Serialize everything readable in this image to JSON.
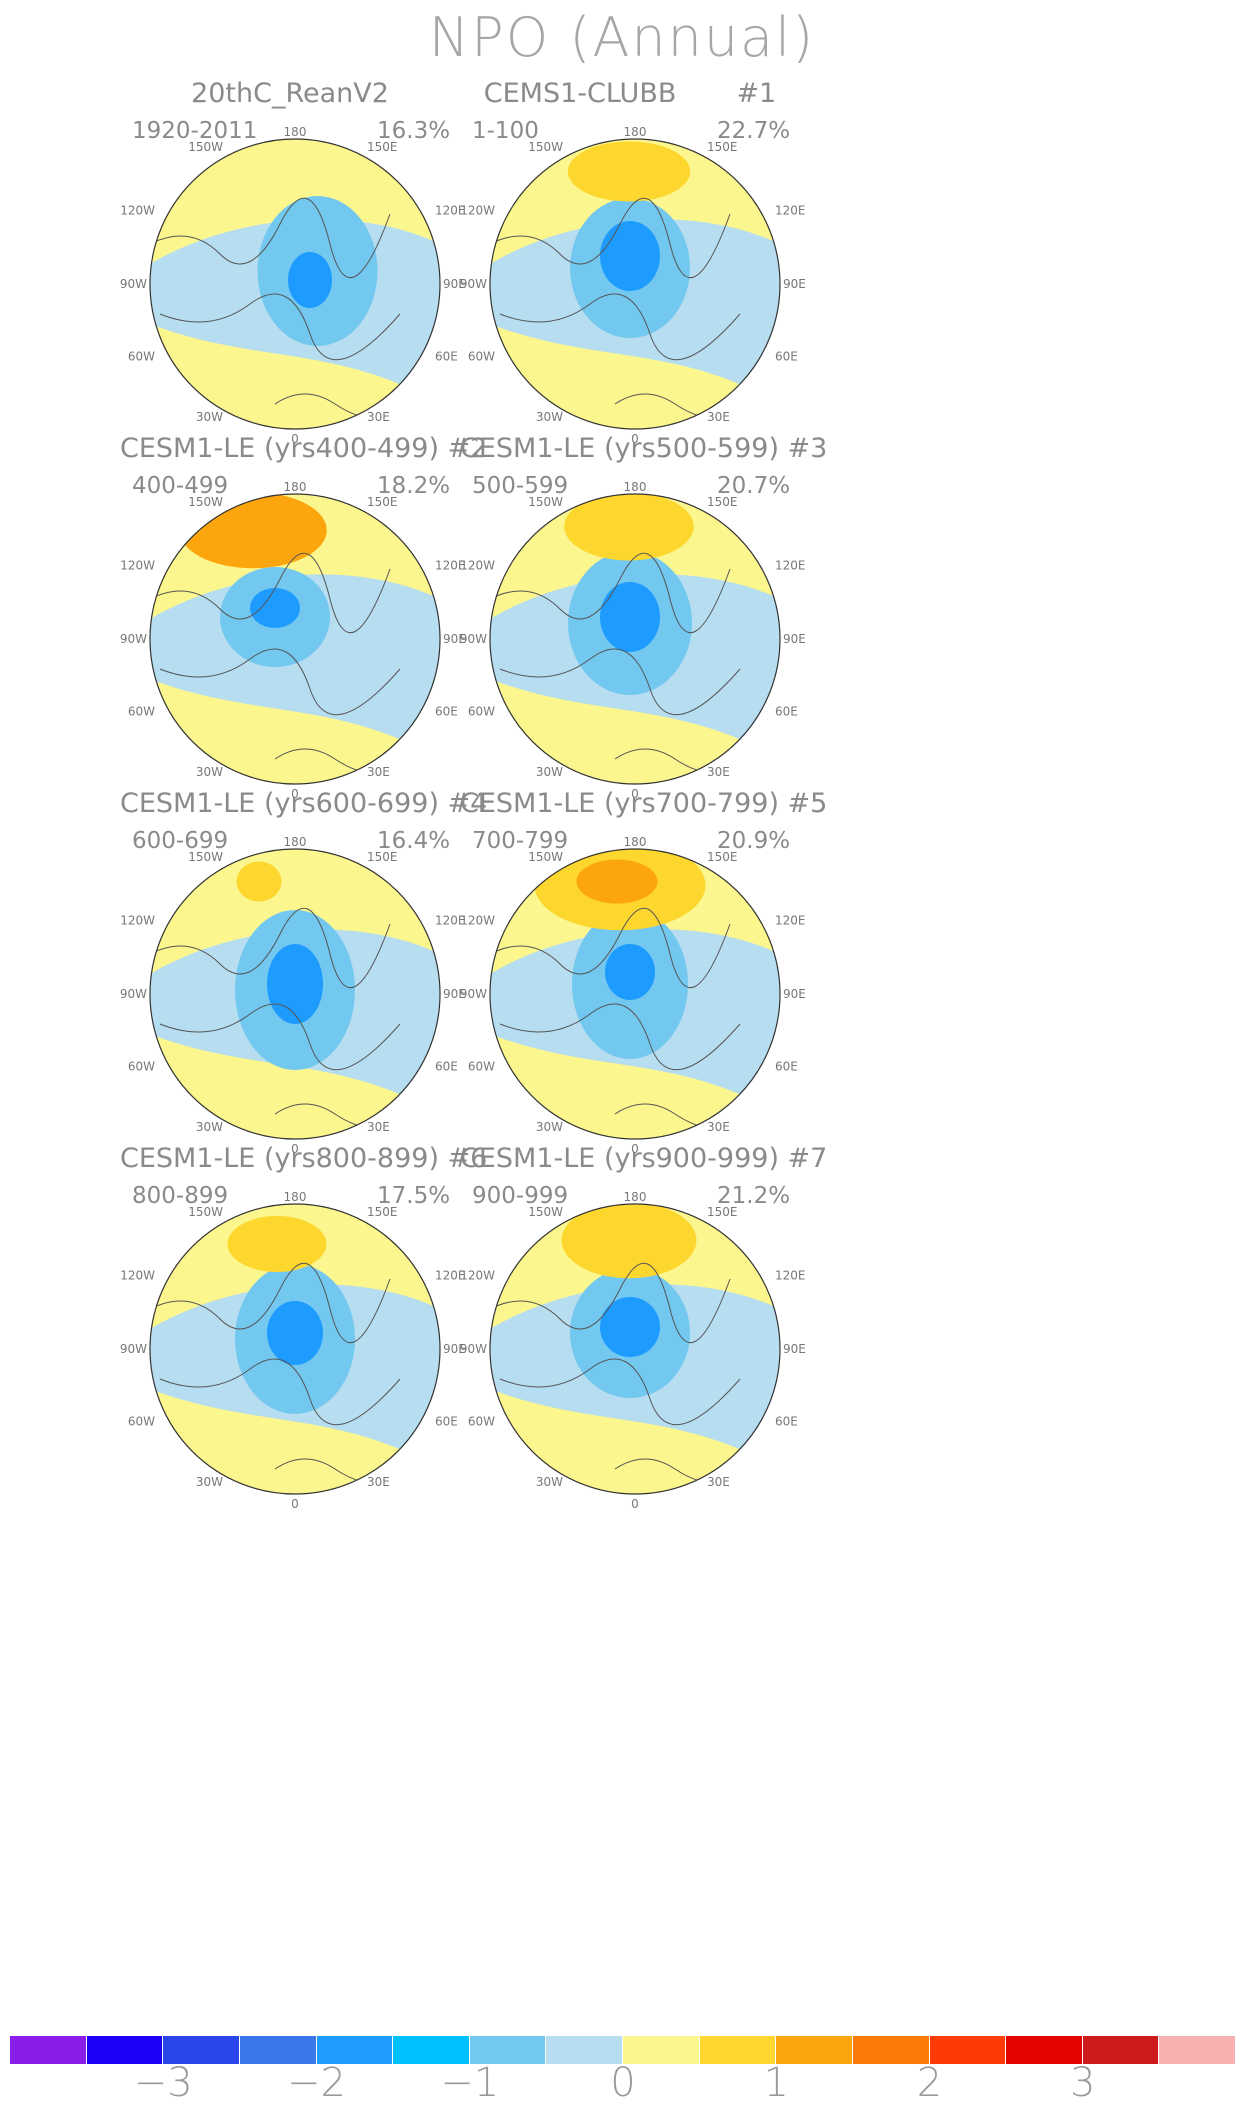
{
  "title": "NPO (Annual)",
  "lon_labels": {
    "t180": "180",
    "t150w": "150W",
    "t150e": "150E",
    "t120w": "120W",
    "t120e": "120E",
    "t90w": "90W",
    "t90e": "90E",
    "t60w": "60W",
    "t60e": "60E",
    "t30w": "30W",
    "t30e": "30E",
    "t0": "0"
  },
  "panels": [
    {
      "title": "20thC_ReanV2",
      "years": "1920-2011",
      "pct": "16.3%",
      "highs": [
        {
          "cx": 0,
          "cy": 0,
          "rx": 0,
          "ry": 0,
          "lvl": 0
        }
      ],
      "lows": [
        {
          "cx": 45,
          "cy": -55,
          "rx": 60,
          "ry": 75,
          "lvl": 1
        },
        {
          "cx": 30,
          "cy": -40,
          "rx": 22,
          "ry": 28,
          "lvl": 2
        }
      ]
    },
    {
      "title": "CEMS1-CLUBB       #1",
      "years": "1-100",
      "pct": "22.7%",
      "highs": [
        {
          "cx": -10,
          "cy": -150,
          "rx": 68,
          "ry": 30,
          "lvl": 1
        }
      ],
      "lows": [
        {
          "cx": -10,
          "cy": -60,
          "rx": 60,
          "ry": 70,
          "lvl": 1
        },
        {
          "cx": -10,
          "cy": -80,
          "rx": 30,
          "ry": 35,
          "lvl": 2
        }
      ]
    },
    {
      "title": "CESM1-LE (yrs400-499) #2",
      "years": "400-499",
      "pct": "18.2%",
      "highs": [
        {
          "cx": -70,
          "cy": -145,
          "rx": 82,
          "ry": 38,
          "lvl": 2
        }
      ],
      "lows": [
        {
          "cx": -40,
          "cy": -70,
          "rx": 55,
          "ry": 50,
          "lvl": 1
        },
        {
          "cx": -40,
          "cy": -85,
          "rx": 25,
          "ry": 20,
          "lvl": 2
        }
      ]
    },
    {
      "title": "CESM1-LE (yrs500-599) #3",
      "years": "500-599",
      "pct": "20.7%",
      "highs": [
        {
          "cx": -10,
          "cy": -150,
          "rx": 72,
          "ry": 34,
          "lvl": 1
        }
      ],
      "lows": [
        {
          "cx": -10,
          "cy": -60,
          "rx": 62,
          "ry": 72,
          "lvl": 1
        },
        {
          "cx": -10,
          "cy": -70,
          "rx": 30,
          "ry": 35,
          "lvl": 2
        }
      ]
    },
    {
      "title": "CESM1-LE (yrs600-699) #4",
      "years": "600-699",
      "pct": "16.4%",
      "highs": [
        {
          "cx": -60,
          "cy": -150,
          "rx": 25,
          "ry": 20,
          "lvl": 1
        }
      ],
      "lows": [
        {
          "cx": 0,
          "cy": -40,
          "rx": 60,
          "ry": 80,
          "lvl": 1
        },
        {
          "cx": 0,
          "cy": -50,
          "rx": 28,
          "ry": 40,
          "lvl": 2
        }
      ]
    },
    {
      "title": "CESM1-LE (yrs700-799) #5",
      "years": "700-799",
      "pct": "20.9%",
      "highs": [
        {
          "cx": -25,
          "cy": -145,
          "rx": 95,
          "ry": 45,
          "lvl": 1
        },
        {
          "cx": -30,
          "cy": -150,
          "rx": 45,
          "ry": 22,
          "lvl": 2
        }
      ],
      "lows": [
        {
          "cx": -10,
          "cy": -50,
          "rx": 58,
          "ry": 75,
          "lvl": 1
        },
        {
          "cx": -10,
          "cy": -70,
          "rx": 25,
          "ry": 28,
          "lvl": 2
        }
      ]
    },
    {
      "title": "CESM1-LE (yrs800-899) #6",
      "years": "800-899",
      "pct": "17.5%",
      "highs": [
        {
          "cx": -30,
          "cy": -140,
          "rx": 55,
          "ry": 28,
          "lvl": 1
        }
      ],
      "lows": [
        {
          "cx": 0,
          "cy": -50,
          "rx": 60,
          "ry": 75,
          "lvl": 1
        },
        {
          "cx": 0,
          "cy": -60,
          "rx": 28,
          "ry": 32,
          "lvl": 2
        }
      ]
    },
    {
      "title": "CESM1-LE (yrs900-999) #7",
      "years": "900-999",
      "pct": "21.2%",
      "highs": [
        {
          "cx": -10,
          "cy": -145,
          "rx": 75,
          "ry": 38,
          "lvl": 1
        }
      ],
      "lows": [
        {
          "cx": -10,
          "cy": -60,
          "rx": 60,
          "ry": 65,
          "lvl": 1
        },
        {
          "cx": -10,
          "cy": -70,
          "rx": 30,
          "ry": 30,
          "lvl": 2
        }
      ]
    }
  ],
  "colorbar": {
    "colors": [
      "#8a1ee8",
      "#1b00f5",
      "#2a45ea",
      "#3a78ea",
      "#1e9bff",
      "#00c0ff",
      "#73c8f0",
      "#b6ddf0",
      "#fbf68e",
      "#fdd62e",
      "#fca50c",
      "#fc7a07",
      "#fc3b05",
      "#e40500",
      "#cc1a1d",
      "#f8b0b0"
    ],
    "labels": [
      "−3",
      "−2",
      "−1",
      "0",
      "1",
      "2",
      "3"
    ]
  }
}
